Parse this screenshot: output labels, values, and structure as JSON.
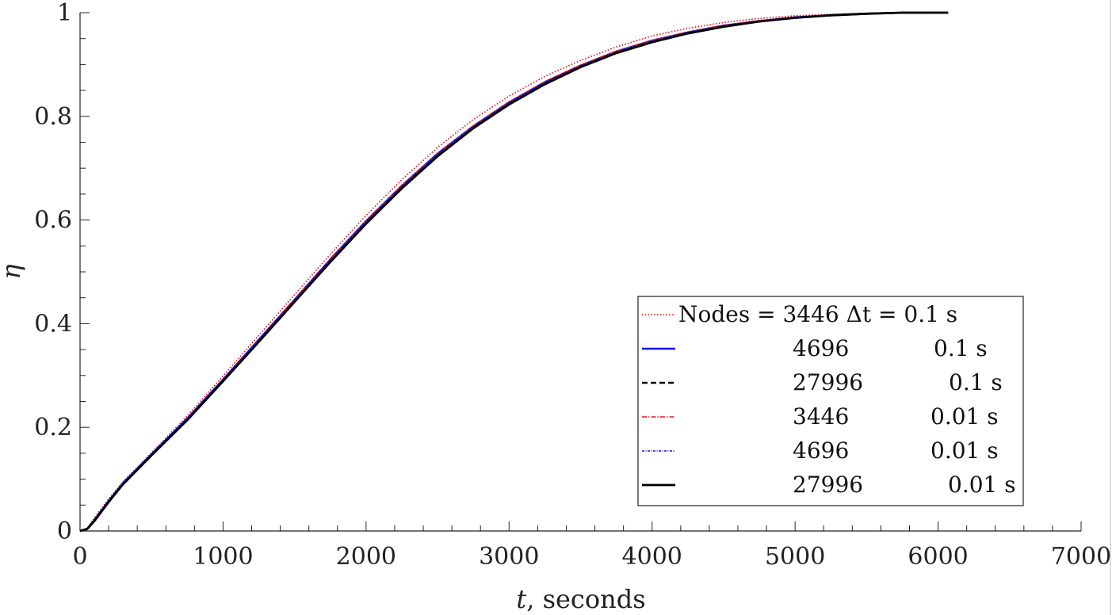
{
  "chart_data": {
    "type": "line",
    "xlabel_var": "t",
    "xlabel_rest": ", seconds",
    "ylabel": "η",
    "xlim": [
      0,
      7000
    ],
    "ylim": [
      0,
      1
    ],
    "xticks": [
      0,
      1000,
      2000,
      3000,
      4000,
      5000,
      6000,
      7000
    ],
    "xtick_labels": [
      "0",
      "1000",
      "2000",
      "3000",
      "4000",
      "5000",
      "6000",
      "7000"
    ],
    "yticks": [
      0,
      0.2,
      0.4,
      0.6,
      0.8,
      1
    ],
    "ytick_labels": [
      "0",
      "0.2",
      "0.4",
      "0.6",
      "0.8",
      "1"
    ],
    "grid": false,
    "legend_position": "bottom-right",
    "legend_header": "Nodes = 3446 Δt = 0.1 s",
    "series": [
      {
        "nodes": "3446",
        "dt": "0.1 s",
        "color": "#e8141e",
        "dash": "1.6,2.2",
        "width": 1.6,
        "x": [
          0,
          50,
          100,
          200,
          300,
          500,
          750,
          1000,
          1250,
          1500,
          1750,
          2000,
          2250,
          2500,
          2750,
          3000,
          3250,
          3500,
          3750,
          4000,
          4250,
          4500,
          4750,
          5000,
          5250,
          5500,
          5750,
          6070
        ],
        "y": [
          0,
          0.005,
          0.025,
          0.062,
          0.095,
          0.151,
          0.222,
          0.299,
          0.377,
          0.456,
          0.534,
          0.609,
          0.678,
          0.74,
          0.794,
          0.839,
          0.877,
          0.908,
          0.934,
          0.955,
          0.97,
          0.981,
          0.989,
          0.994,
          0.997,
          0.999,
          1.0,
          1.0
        ]
      },
      {
        "nodes": "4696",
        "dt": "0.1 s",
        "color": "#1212d8",
        "dash": "",
        "width": 2.6,
        "x": [
          0,
          50,
          100,
          200,
          300,
          500,
          750,
          1000,
          1250,
          1500,
          1750,
          2000,
          2250,
          2500,
          2750,
          3000,
          3250,
          3500,
          3750,
          4000,
          4250,
          4500,
          4750,
          5000,
          5250,
          5500,
          5750,
          6070
        ],
        "y": [
          0,
          0.004,
          0.021,
          0.058,
          0.092,
          0.148,
          0.217,
          0.292,
          0.369,
          0.446,
          0.524,
          0.598,
          0.666,
          0.728,
          0.781,
          0.827,
          0.866,
          0.898,
          0.925,
          0.946,
          0.962,
          0.975,
          0.984,
          0.991,
          0.995,
          0.998,
          1.0,
          1.0
        ]
      },
      {
        "nodes": "27996",
        "dt": "0.1 s",
        "color": "#000000",
        "dash": "7,4",
        "width": 2.4,
        "x": [
          0,
          50,
          100,
          200,
          300,
          500,
          750,
          1000,
          1250,
          1500,
          1750,
          2000,
          2250,
          2500,
          2750,
          3000,
          3250,
          3500,
          3750,
          4000,
          4250,
          4500,
          4750,
          5000,
          5250,
          5500,
          5750,
          6070
        ],
        "y": [
          0,
          0.004,
          0.02,
          0.057,
          0.091,
          0.147,
          0.215,
          0.29,
          0.366,
          0.443,
          0.52,
          0.594,
          0.662,
          0.724,
          0.778,
          0.824,
          0.863,
          0.896,
          0.923,
          0.944,
          0.961,
          0.974,
          0.983,
          0.99,
          0.995,
          0.998,
          1.0,
          1.0
        ]
      },
      {
        "nodes": "3446",
        "dt": "0.01 s",
        "color": "#e8141e",
        "dash": "6,2,1.5,2",
        "width": 1.6,
        "x": [
          0,
          50,
          100,
          200,
          300,
          500,
          750,
          1000,
          1250,
          1500,
          1750,
          2000,
          2250,
          2500,
          2750,
          3000,
          3250,
          3500,
          3750,
          4000,
          4250,
          4500,
          4750,
          5000,
          5250,
          5500,
          5750,
          6070
        ],
        "y": [
          0,
          0.004,
          0.02,
          0.056,
          0.09,
          0.146,
          0.215,
          0.291,
          0.368,
          0.446,
          0.524,
          0.598,
          0.667,
          0.728,
          0.782,
          0.828,
          0.867,
          0.899,
          0.926,
          0.947,
          0.963,
          0.976,
          0.985,
          0.991,
          0.995,
          0.998,
          1.0,
          1.0
        ]
      },
      {
        "nodes": "4696",
        "dt": "0.01 s",
        "color": "#1212d8",
        "dash": "3,1.5,1,1.5",
        "width": 1.6,
        "x": [
          0,
          50,
          100,
          200,
          300,
          500,
          750,
          1000,
          1250,
          1500,
          1750,
          2000,
          2250,
          2500,
          2750,
          3000,
          3250,
          3500,
          3750,
          4000,
          4250,
          4500,
          4750,
          5000,
          5250,
          5500,
          5750,
          6070
        ],
        "y": [
          0,
          0.004,
          0.021,
          0.058,
          0.092,
          0.148,
          0.216,
          0.291,
          0.368,
          0.445,
          0.523,
          0.597,
          0.665,
          0.727,
          0.78,
          0.826,
          0.865,
          0.897,
          0.924,
          0.945,
          0.962,
          0.975,
          0.984,
          0.991,
          0.995,
          0.998,
          1.0,
          1.0
        ]
      },
      {
        "nodes": "27996",
        "dt": "0.01 s",
        "color": "#000000",
        "dash": "",
        "width": 2.8,
        "x": [
          0,
          50,
          100,
          200,
          300,
          500,
          750,
          1000,
          1250,
          1500,
          1750,
          2000,
          2250,
          2500,
          2750,
          3000,
          3250,
          3500,
          3750,
          4000,
          4250,
          4500,
          4750,
          5000,
          5250,
          5500,
          5750,
          6070
        ],
        "y": [
          0,
          0.004,
          0.019,
          0.056,
          0.09,
          0.146,
          0.214,
          0.289,
          0.365,
          0.442,
          0.519,
          0.593,
          0.661,
          0.723,
          0.777,
          0.823,
          0.862,
          0.895,
          0.922,
          0.943,
          0.96,
          0.973,
          0.983,
          0.99,
          0.995,
          0.998,
          1.0,
          1.0
        ]
      }
    ]
  }
}
